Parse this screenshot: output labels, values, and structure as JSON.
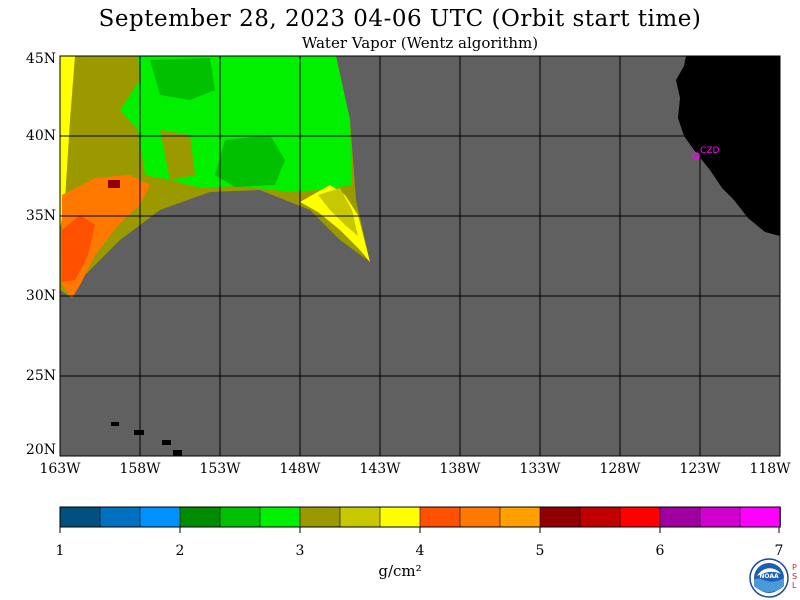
{
  "title": "September 28, 2023  04-06 UTC  (Orbit start time)",
  "subtitle": "Water Vapor (Wentz algorithm)",
  "lat_labels": [
    "45N",
    "40N",
    "35N",
    "30N",
    "25N",
    "20N"
  ],
  "lon_labels": [
    "163W",
    "158W",
    "153W",
    "148W",
    "143W",
    "138W",
    "133W",
    "128W",
    "123W",
    "118W"
  ],
  "colorbar": {
    "ticks": [
      "1",
      "2",
      "3",
      "4",
      "5",
      "6",
      "7"
    ],
    "units": "g/cm²",
    "colors": [
      "#005080",
      "#0070c0",
      "#0090ff",
      "#008c00",
      "#00c000",
      "#00f000",
      "#9a9a00",
      "#c8c800",
      "#ffff00",
      "#ff5000",
      "#ff7800",
      "#ffa000",
      "#900000",
      "#c00000",
      "#ff0000",
      "#a000a0",
      "#d000d0",
      "#ff00ff"
    ]
  },
  "map": {
    "ocean_no_data_color": "#606060",
    "land_color": "#000000",
    "gridline_color": "#000000",
    "station_label": "CZD"
  },
  "logo": {
    "name": "NOAA",
    "side_text": "PSL"
  }
}
